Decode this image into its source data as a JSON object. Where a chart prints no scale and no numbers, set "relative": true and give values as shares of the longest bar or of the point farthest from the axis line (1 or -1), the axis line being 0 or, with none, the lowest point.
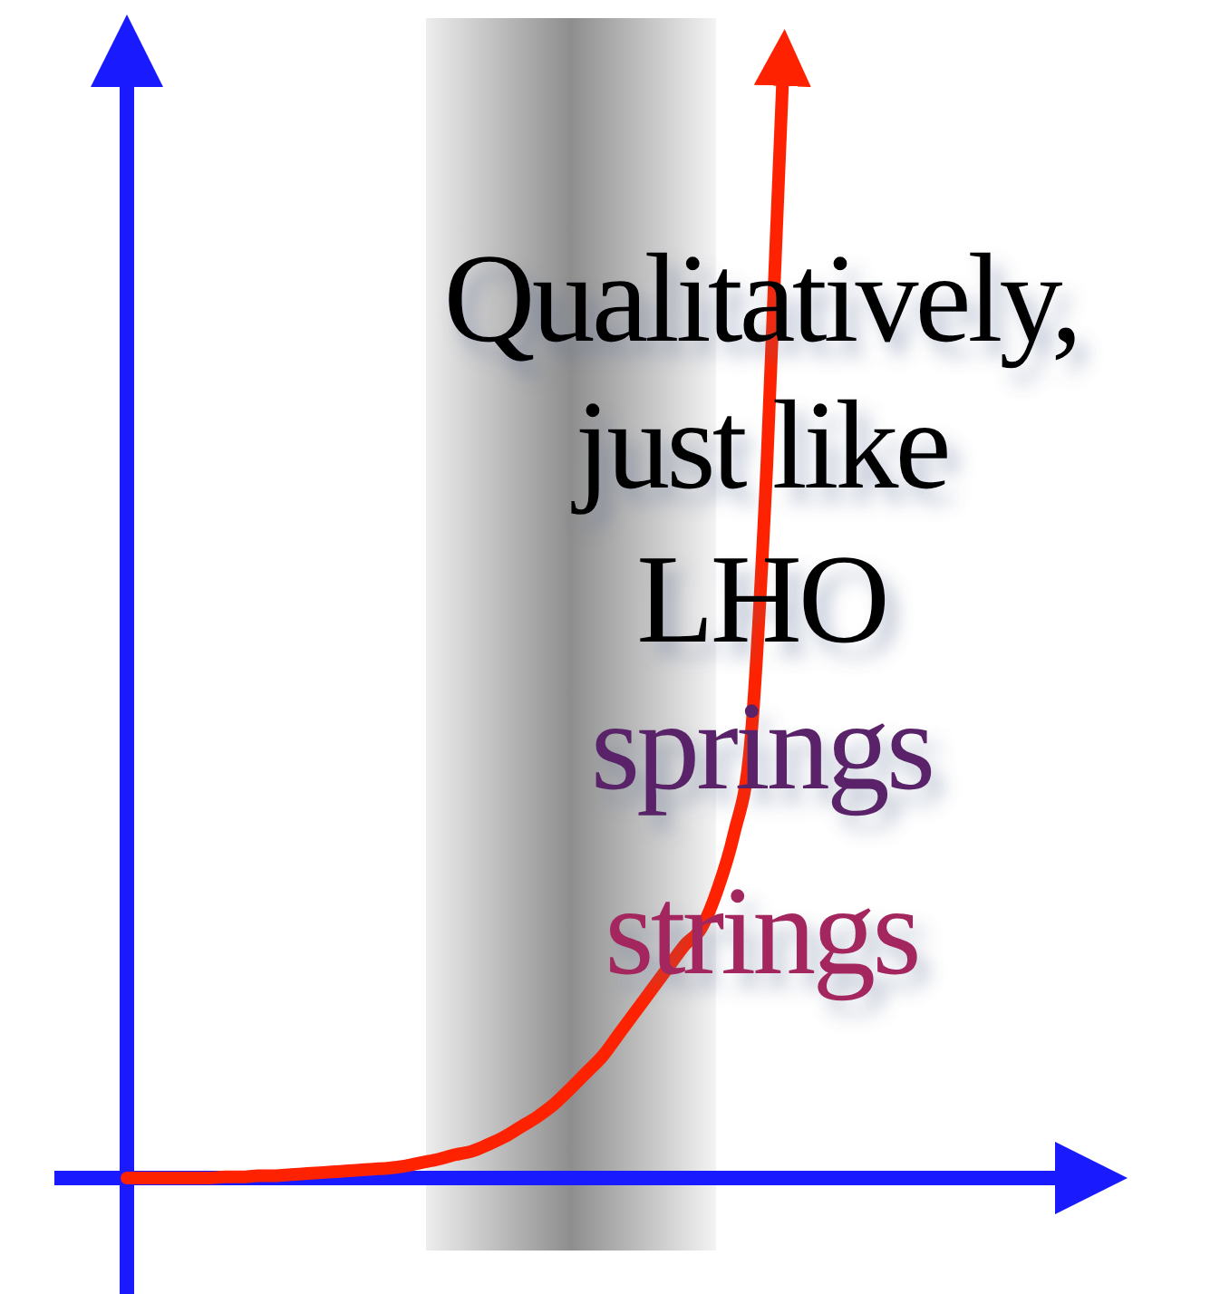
{
  "chart_data": {
    "type": "line",
    "relative": true,
    "categories": [
      null,
      null,
      null,
      null,
      null,
      null,
      null,
      null,
      null,
      null,
      null,
      null,
      null,
      null,
      null,
      null,
      null,
      null,
      null,
      null,
      null,
      null,
      null,
      null,
      null,
      null,
      null,
      null,
      null,
      null,
      null,
      null,
      null,
      null,
      null,
      null,
      null,
      null,
      null,
      null,
      null,
      null,
      null,
      null,
      null,
      null,
      null,
      null,
      null,
      null,
      null,
      null,
      null,
      null,
      null,
      null,
      null,
      null,
      null,
      null
    ],
    "series": [
      {
        "color": "#ff2200",
        "values": [
          0,
          0,
          0,
          0,
          0,
          0,
          0.001,
          0.001,
          0.002,
          0.002,
          0.003,
          0.004,
          0.005,
          0.006,
          0.007,
          0.008,
          0.009,
          0.011,
          0.014,
          0.017,
          0.021,
          0.024,
          0.03,
          0.037,
          0.046,
          0.055,
          0.066,
          0.08,
          0.095,
          0.11,
          0.13,
          0.15,
          0.17,
          0.19,
          0.21,
          0.225,
          0.26,
          0.31,
          0.39,
          0.64,
          1,
          null,
          null,
          null,
          null,
          null,
          null,
          null,
          null,
          null,
          null,
          null,
          null,
          null,
          null,
          null,
          null,
          null,
          null,
          null
        ]
      }
    ],
    "annotations": [
      "Qualitatively,",
      "just like",
      "LHO",
      "springs",
      "strings"
    ]
  }
}
